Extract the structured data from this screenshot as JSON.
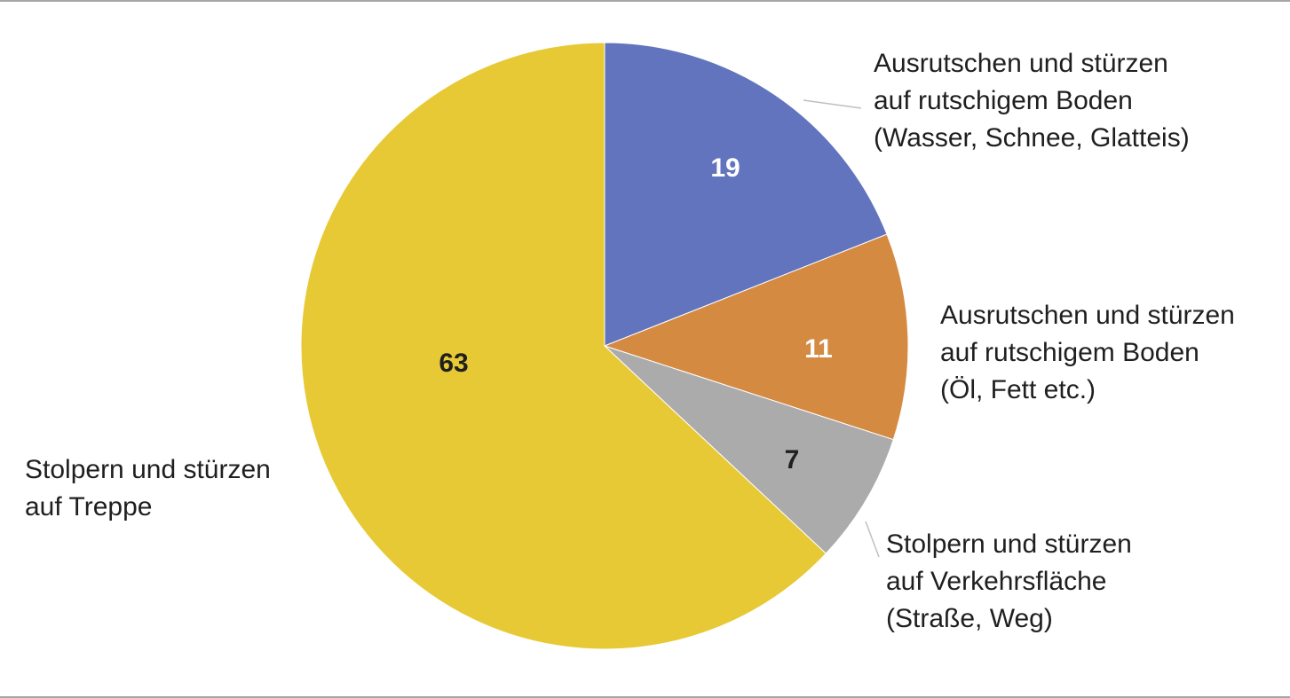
{
  "chart_data": {
    "type": "pie",
    "title": "",
    "legend": "none",
    "start_angle_deg": 0,
    "slices": [
      {
        "label_lines": [
          "Ausrutschen und stürzen",
          "auf rutschigem Boden",
          "(Wasser, Schnee, Glatteis)"
        ],
        "value": 19,
        "value_label": "19",
        "color": "#6174bd",
        "value_color": "#ffffff"
      },
      {
        "label_lines": [
          "Ausrutschen und stürzen",
          "auf rutschigem Boden",
          "(Öl, Fett etc.)"
        ],
        "value": 11,
        "value_label": "11",
        "color": "#d58a42",
        "value_color": "#ffffff"
      },
      {
        "label_lines": [
          "Stolpern und stürzen",
          "auf Verkehrsfläche",
          "(Straße, Weg)"
        ],
        "value": 7,
        "value_label": "7",
        "color": "#ababab",
        "value_color": "#1f1f1f"
      },
      {
        "label_lines": [
          "Stolpern und stürzen",
          "auf Treppe"
        ],
        "value": 63,
        "value_label": "63",
        "color": "#e7c935",
        "value_color": "#1f1f1f"
      }
    ]
  }
}
